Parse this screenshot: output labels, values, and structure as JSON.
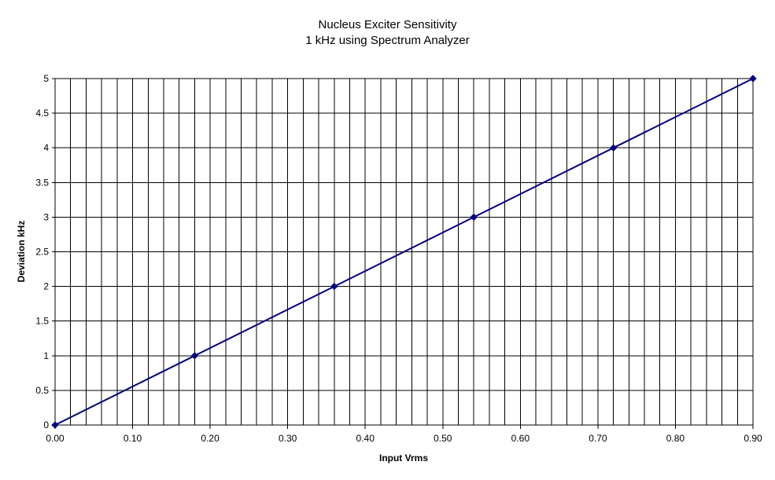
{
  "chart_data": {
    "type": "line",
    "title": "Nucleus Exciter Sensitivity",
    "subtitle": "1 kHz using Spectrum Analyzer",
    "xlabel": "Input Vrms",
    "ylabel": "Deviation kHz",
    "xlim": [
      0,
      0.9
    ],
    "ylim": [
      0,
      5
    ],
    "x_tick_labels": [
      "0.00",
      "0.10",
      "0.20",
      "0.30",
      "0.40",
      "0.50",
      "0.60",
      "0.70",
      "0.80",
      "0.90"
    ],
    "y_tick_labels": [
      "0",
      "0.5",
      "1",
      "1.5",
      "2",
      "2.5",
      "3",
      "3.5",
      "4",
      "4.5",
      "5"
    ],
    "x_minor_step": 0.02,
    "grid": true,
    "marker": "diamond",
    "series": [
      {
        "x": [
          0,
          0.18,
          0.36,
          0.54,
          0.72,
          0.9
        ],
        "y": [
          0,
          1,
          2,
          3,
          4,
          5
        ]
      }
    ],
    "colors": {
      "line": "#000080",
      "grid": "#000000",
      "background": "#ffffff"
    }
  }
}
